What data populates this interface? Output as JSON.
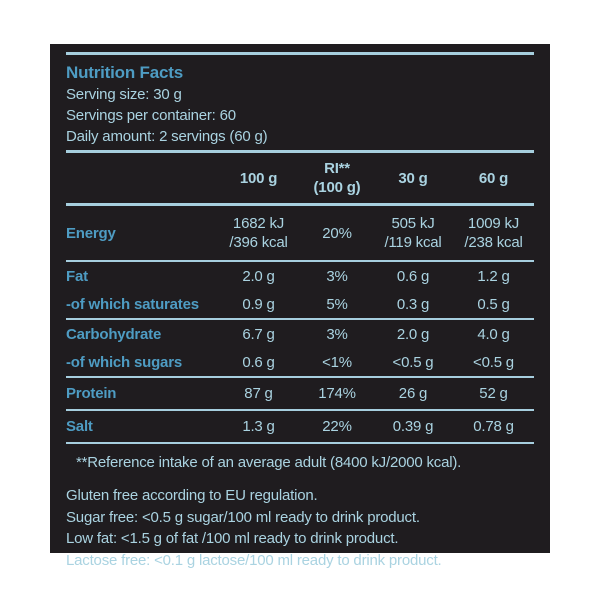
{
  "colors": {
    "page_background": "#ffffff",
    "panel_background": "#1f1c1f",
    "bold_text": "#4e9cc3",
    "light_text": "#aad3e1",
    "divider": "#a6cede"
  },
  "header": {
    "title": "Nutrition Facts",
    "serving_size": "Serving size: 30 g",
    "servings_per_container": "Servings per container: 60",
    "daily_amount": "Daily amount: 2 servings (60 g)"
  },
  "table": {
    "columns": {
      "c100": "100 g",
      "ri": "RI**\n(100 g)",
      "c30": "30 g",
      "c60": "60 g"
    },
    "rows": [
      {
        "label": "Energy",
        "c100": "1682 kJ\n/396 kcal",
        "ri": "20%",
        "c30": "505 kJ\n/119 kcal",
        "c60": "1009 kJ\n/238 kcal"
      },
      {
        "label": "Fat",
        "c100": "2.0 g",
        "ri": "3%",
        "c30": "0.6 g",
        "c60": "1.2 g"
      },
      {
        "label": "-of which saturates",
        "c100": "0.9 g",
        "ri": "5%",
        "c30": "0.3 g",
        "c60": "0.5 g"
      },
      {
        "label": "Carbohydrate",
        "c100": "6.7 g",
        "ri": "3%",
        "c30": "2.0 g",
        "c60": "4.0 g"
      },
      {
        "label": "-of which sugars",
        "c100": "0.6 g",
        "ri": "<1%",
        "c30": "<0.5 g",
        "c60": "<0.5 g"
      },
      {
        "label": "Protein",
        "c100": "87 g",
        "ri": "174%",
        "c30": "26 g",
        "c60": "52 g"
      },
      {
        "label": "Salt",
        "c100": "1.3 g",
        "ri": "22%",
        "c30": "0.39 g",
        "c60": "0.78 g"
      }
    ],
    "footnote": "**Reference intake of an average adult (8400 kJ/2000 kcal)."
  },
  "claims": [
    "Gluten free according to EU regulation.",
    "Sugar free: <0.5 g sugar/100 ml ready to drink product.",
    "Low fat: <1.5 g of fat /100 ml ready to drink product.",
    "Lactose free: <0.1 g lactose/100 ml ready to drink product."
  ]
}
